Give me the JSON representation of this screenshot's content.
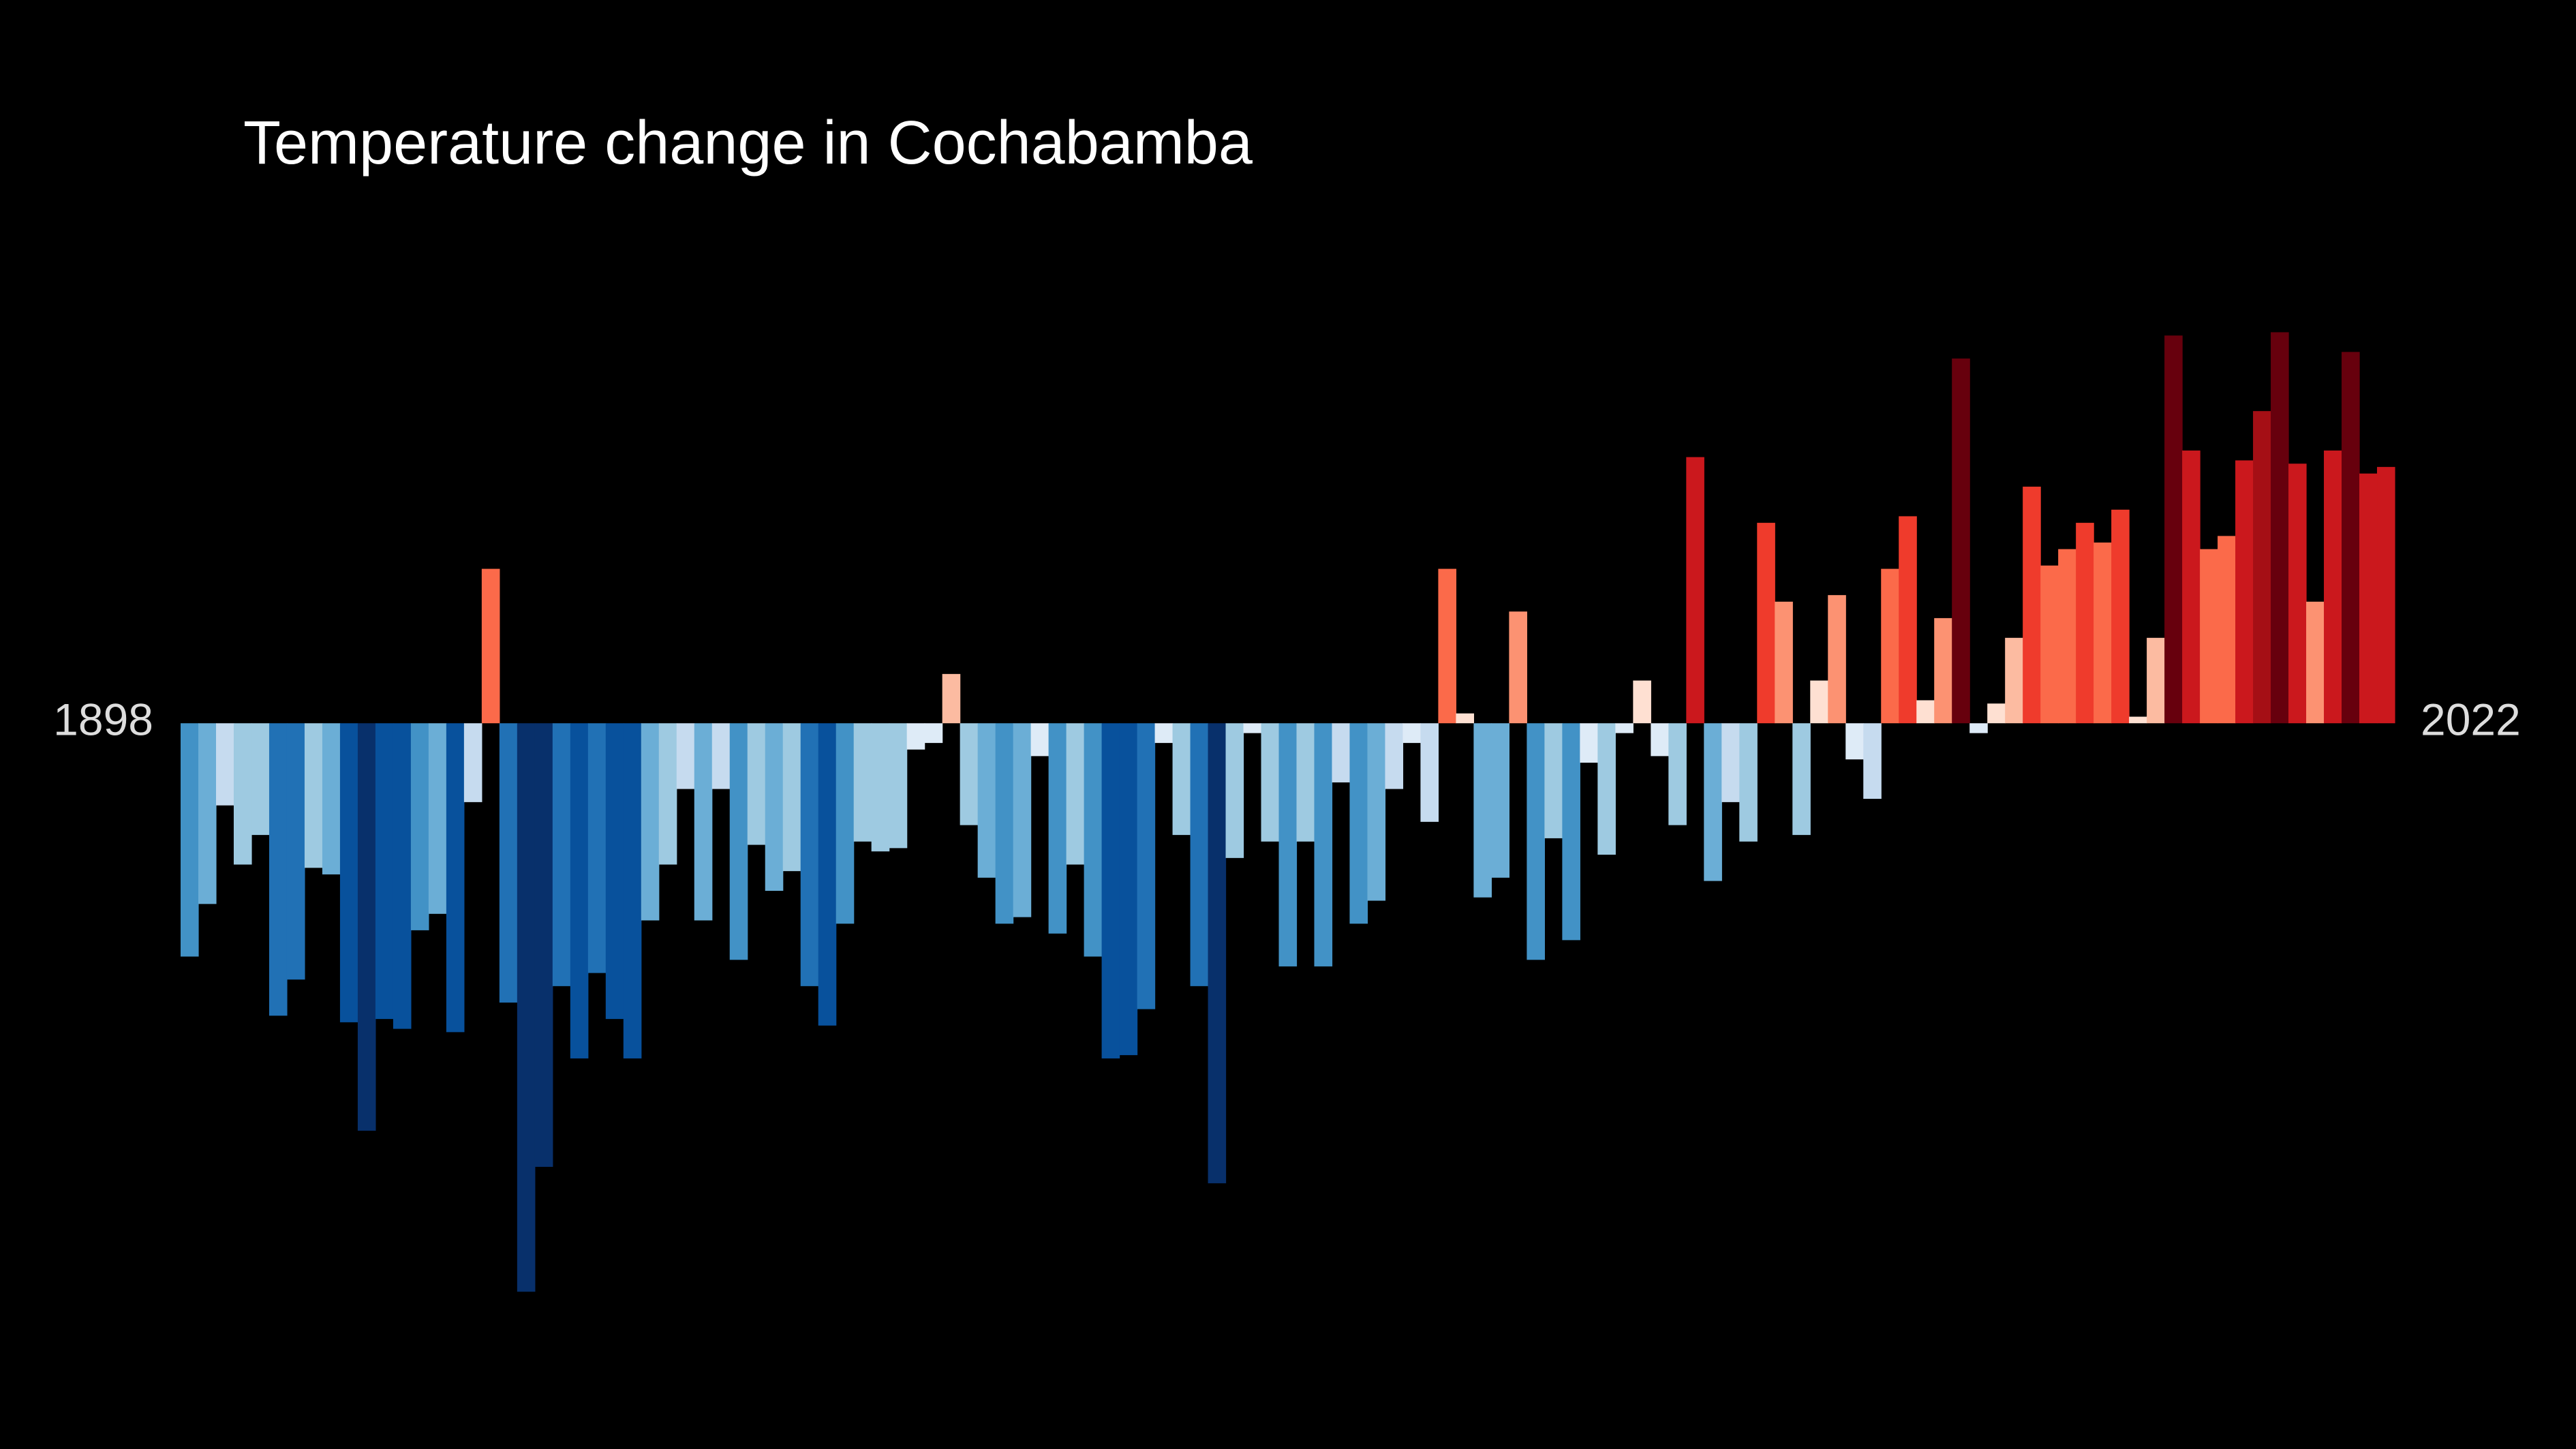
{
  "chart_data": {
    "type": "bar",
    "title": "Temperature change in Cochabamba",
    "categories": [
      "1898",
      null,
      null,
      null,
      null,
      null,
      null,
      null,
      null,
      null,
      null,
      null,
      null,
      null,
      null,
      null,
      null,
      null,
      null,
      null,
      null,
      null,
      null,
      null,
      null,
      null,
      null,
      null,
      null,
      null,
      null,
      null,
      null,
      null,
      null,
      null,
      null,
      null,
      null,
      null,
      null,
      null,
      null,
      null,
      null,
      null,
      null,
      null,
      null,
      null,
      null,
      null,
      null,
      null,
      null,
      null,
      null,
      null,
      null,
      null,
      null,
      null,
      null,
      null,
      null,
      null,
      null,
      null,
      null,
      null,
      null,
      null,
      null,
      null,
      null,
      null,
      null,
      null,
      null,
      null,
      null,
      null,
      null,
      null,
      null,
      null,
      null,
      null,
      null,
      null,
      null,
      null,
      null,
      null,
      null,
      null,
      null,
      null,
      null,
      null,
      null,
      null,
      null,
      null,
      null,
      null,
      null,
      null,
      null,
      null,
      null,
      null,
      null,
      null,
      null,
      null,
      null,
      null,
      null,
      null,
      null,
      null,
      null,
      null,
      "2022"
    ],
    "values": [
      -0.71,
      -0.55,
      -0.25,
      -0.43,
      -0.34,
      -0.89,
      -0.78,
      -0.44,
      -0.46,
      -0.91,
      -1.24,
      -0.9,
      -0.93,
      -0.63,
      -0.58,
      -0.94,
      -0.24,
      0.47,
      -0.85,
      -1.73,
      -1.35,
      -0.8,
      -1.02,
      -0.76,
      -0.9,
      -1.02,
      -0.6,
      -0.43,
      -0.2,
      -0.6,
      -0.2,
      -0.72,
      -0.37,
      -0.51,
      -0.45,
      -0.8,
      -0.92,
      -0.61,
      -0.36,
      -0.39,
      -0.38,
      -0.08,
      -0.06,
      0.15,
      -0.31,
      -0.47,
      -0.61,
      -0.59,
      -0.1,
      -0.64,
      -0.43,
      -0.71,
      -1.02,
      -1.01,
      -0.87,
      -0.06,
      -0.34,
      -0.8,
      -1.4,
      -0.41,
      -0.03,
      -0.36,
      -0.74,
      -0.36,
      -0.74,
      -0.18,
      -0.61,
      -0.54,
      -0.2,
      -0.06,
      -0.3,
      0.47,
      0.03,
      -0.53,
      -0.47,
      0.34,
      -0.72,
      -0.35,
      -0.66,
      -0.12,
      -0.4,
      -0.03,
      0.13,
      -0.1,
      -0.31,
      0.81,
      -0.48,
      -0.24,
      -0.36,
      0.61,
      0.37,
      -0.34,
      0.13,
      0.39,
      -0.11,
      -0.23,
      0.47,
      0.63,
      0.07,
      0.32,
      1.11,
      -0.03,
      0.06,
      0.26,
      0.72,
      0.48,
      0.53,
      0.61,
      0.55,
      0.65,
      0.02,
      0.26,
      1.18,
      0.83,
      0.53,
      0.57,
      0.8,
      0.95,
      1.19,
      0.79,
      0.37,
      0.83,
      1.13,
      0.76,
      0.78
    ],
    "ylim": [
      -1.8,
      1.5
    ],
    "clim": [
      -1.2,
      1.2
    ],
    "palette": [
      "#08306b",
      "#08519c",
      "#2171b5",
      "#4292c6",
      "#6baed6",
      "#9ecae1",
      "#c6dbef",
      "#deebf7",
      "#fee0d2",
      "#fcbba1",
      "#fc9272",
      "#fb6a4a",
      "#ef3b2c",
      "#cb181d",
      "#a50f15",
      "#67000d"
    ]
  }
}
